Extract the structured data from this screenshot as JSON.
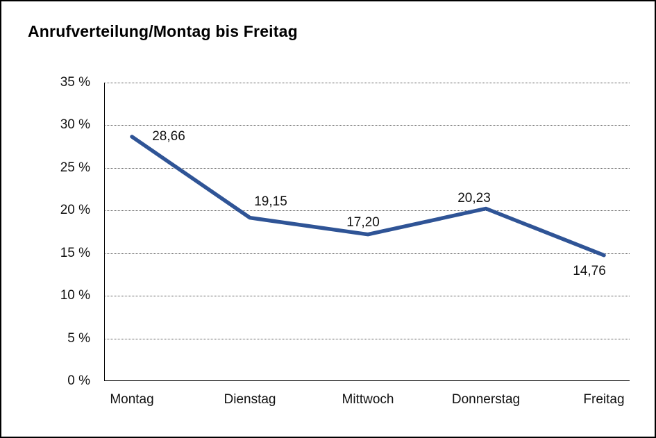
{
  "title": "Anrufverteilung/Montag bis Freitag",
  "chart_data": {
    "type": "line",
    "title": "Anrufverteilung/Montag bis Freitag",
    "categories": [
      "Montag",
      "Dienstag",
      "Mittwoch",
      "Donnerstag",
      "Freitag"
    ],
    "values": [
      28.66,
      19.15,
      17.2,
      20.23,
      14.76
    ],
    "value_labels": [
      "28,66",
      "19,15",
      "17,20",
      "20,23",
      "14,76"
    ],
    "ylim": [
      0,
      35
    ],
    "ytick_step": 5,
    "ytick_labels": [
      "35 %",
      "30 %",
      "25 %",
      "20 %",
      "15 %",
      "10 %",
      "5 %",
      "0 %"
    ],
    "xlabel": "",
    "ylabel": "",
    "legend": "none",
    "grid": "horizontal-dotted",
    "line_color": "#2F5496",
    "axis_color": "#000000"
  }
}
